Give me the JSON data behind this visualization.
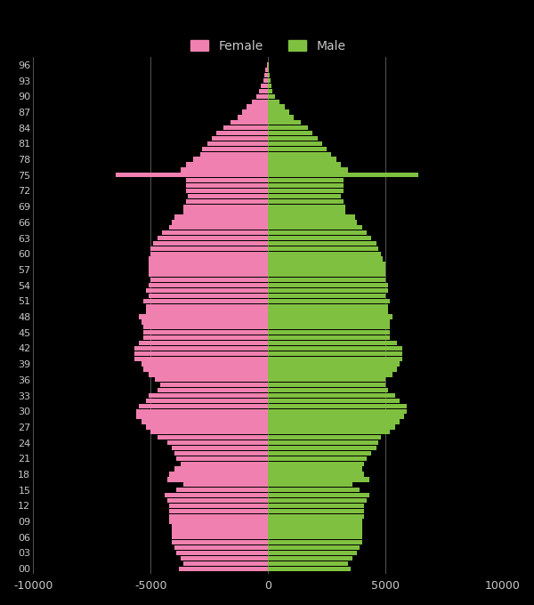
{
  "background_color": "#000000",
  "text_color": "#c8c8c8",
  "female_color": "#f080b0",
  "male_color": "#80c040",
  "grid_color": "#555555",
  "legend_female": "Female",
  "legend_male": "Male",
  "xlim": [
    -10000,
    10000
  ],
  "xticks": [
    -10000,
    -5000,
    0,
    5000,
    10000
  ],
  "ytick_labels_ages": [
    0,
    3,
    6,
    9,
    12,
    15,
    18,
    21,
    24,
    27,
    30,
    33,
    36,
    39,
    42,
    45,
    48,
    51,
    54,
    57,
    60,
    63,
    66,
    69,
    72,
    75,
    78,
    81,
    84,
    87,
    90,
    93,
    96
  ],
  "ages": [
    0,
    1,
    2,
    3,
    4,
    5,
    6,
    7,
    8,
    9,
    10,
    11,
    12,
    13,
    14,
    15,
    16,
    17,
    18,
    19,
    20,
    21,
    22,
    23,
    24,
    25,
    26,
    27,
    28,
    29,
    30,
    31,
    32,
    33,
    34,
    35,
    36,
    37,
    38,
    39,
    40,
    41,
    42,
    43,
    44,
    45,
    46,
    47,
    48,
    49,
    50,
    51,
    52,
    53,
    54,
    55,
    56,
    57,
    58,
    59,
    60,
    61,
    62,
    63,
    64,
    65,
    66,
    67,
    68,
    69,
    70,
    71,
    72,
    73,
    74,
    75,
    76,
    77,
    78,
    79,
    80,
    81,
    82,
    83,
    84,
    85,
    86,
    87,
    88,
    89,
    90,
    91,
    92,
    93,
    94,
    95,
    96
  ],
  "female_values": [
    -3800,
    -3600,
    -3700,
    -3900,
    -4000,
    -4100,
    -4100,
    -4100,
    -4100,
    -4200,
    -4200,
    -4200,
    -4200,
    -4300,
    -4400,
    -3900,
    -3600,
    -4300,
    -4200,
    -4000,
    -3700,
    -3900,
    -4000,
    -4100,
    -4300,
    -4700,
    -5000,
    -5200,
    -5400,
    -5600,
    -5600,
    -5500,
    -5200,
    -5100,
    -4700,
    -4600,
    -4800,
    -5100,
    -5300,
    -5400,
    -5700,
    -5700,
    -5700,
    -5500,
    -5300,
    -5300,
    -5300,
    -5400,
    -5500,
    -5200,
    -5200,
    -5300,
    -5100,
    -5200,
    -5100,
    -5000,
    -5100,
    -5100,
    -5100,
    -5100,
    -5000,
    -5000,
    -4900,
    -4700,
    -4500,
    -4200,
    -4100,
    -4000,
    -3600,
    -3600,
    -3500,
    -3400,
    -3500,
    -3500,
    -3500,
    -6500,
    -3700,
    -3500,
    -3200,
    -2900,
    -2800,
    -2600,
    -2400,
    -2200,
    -1900,
    -1600,
    -1300,
    -1100,
    -900,
    -700,
    -500,
    -400,
    -300,
    -200,
    -150,
    -100,
    -50
  ],
  "male_values": [
    3500,
    3400,
    3600,
    3800,
    3900,
    4000,
    4000,
    4000,
    4000,
    4000,
    4100,
    4100,
    4100,
    4200,
    4300,
    3900,
    3600,
    4300,
    4100,
    4000,
    4100,
    4200,
    4400,
    4600,
    4700,
    4800,
    5200,
    5400,
    5600,
    5800,
    5900,
    5900,
    5600,
    5400,
    5100,
    5000,
    5000,
    5300,
    5500,
    5600,
    5700,
    5700,
    5700,
    5500,
    5200,
    5200,
    5200,
    5200,
    5300,
    5100,
    5100,
    5200,
    5000,
    5100,
    5100,
    5000,
    5000,
    5000,
    5000,
    4900,
    4800,
    4700,
    4600,
    4400,
    4200,
    4000,
    3800,
    3700,
    3300,
    3300,
    3200,
    3100,
    3200,
    3200,
    3200,
    6400,
    3400,
    3100,
    2900,
    2700,
    2500,
    2300,
    2100,
    1900,
    1700,
    1400,
    1100,
    900,
    700,
    500,
    300,
    200,
    150,
    100,
    75,
    50,
    25
  ],
  "bar_height": 0.9,
  "figsize": [
    6.0,
    6.8
  ],
  "dpi": 100
}
